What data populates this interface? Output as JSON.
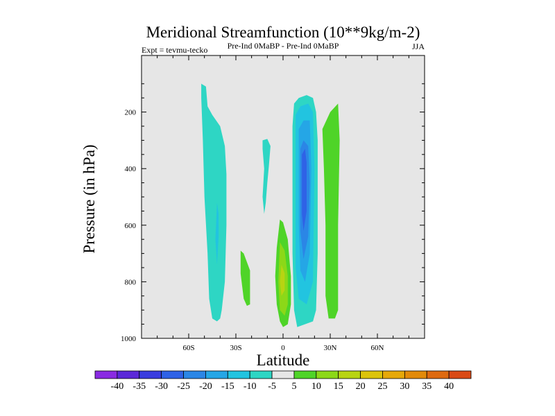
{
  "chart_data": {
    "type": "contour",
    "title": "Meridional Streamfunction (10**9kg/m-2)",
    "subtitle_left": "Expt = tevmu-tecko",
    "subtitle_center": "Pre-Ind 0MaBP - Pre-Ind 0MaBP",
    "season": "JJA",
    "xlabel": "Latitude",
    "ylabel": "Pressure (in hPa)",
    "xlim": [
      -90,
      90
    ],
    "ylim": [
      0,
      1000
    ],
    "y_inverted": true,
    "x_ticks": [
      {
        "value": -60,
        "label": "60S"
      },
      {
        "value": -30,
        "label": "30S"
      },
      {
        "value": 0,
        "label": "0"
      },
      {
        "value": 30,
        "label": "30N"
      },
      {
        "value": 60,
        "label": "60N"
      }
    ],
    "y_ticks": [
      {
        "value": 200,
        "label": "200"
      },
      {
        "value": 400,
        "label": "400"
      },
      {
        "value": 600,
        "label": "600"
      },
      {
        "value": 800,
        "label": "800"
      },
      {
        "value": 1000,
        "label": "1000"
      }
    ],
    "colorbar": {
      "labels": [
        "-40",
        "-35",
        "-30",
        "-25",
        "-20",
        "-15",
        "-10",
        "-5",
        "5",
        "10",
        "15",
        "20",
        "25",
        "30",
        "35",
        "40"
      ],
      "colors": [
        "#8a2be2",
        "#5b28d8",
        "#3a3ddf",
        "#2f62e6",
        "#2b86e6",
        "#25a6e6",
        "#22c4e0",
        "#2ed6c4",
        "#e6e6e6",
        "#4fd428",
        "#8cd818",
        "#b8d412",
        "#dcc40c",
        "#e6a80a",
        "#e28a0a",
        "#de6a10",
        "#da4a16"
      ]
    },
    "regions": [
      {
        "name": "sh-extratropical-cell",
        "level": "-5",
        "outline": [
          [
            -52,
            100
          ],
          [
            -49,
            110
          ],
          [
            -48,
            180
          ],
          [
            -45,
            210
          ],
          [
            -40,
            250
          ],
          [
            -37,
            320
          ],
          [
            -36,
            420
          ],
          [
            -36,
            600
          ],
          [
            -37,
            800
          ],
          [
            -39,
            900
          ],
          [
            -40,
            930
          ],
          [
            -42,
            940
          ],
          [
            -45,
            930
          ],
          [
            -47,
            860
          ],
          [
            -48,
            700
          ],
          [
            -50,
            500
          ],
          [
            -51,
            300
          ],
          [
            -52,
            150
          ]
        ]
      },
      {
        "name": "sh-extratropical-core",
        "level": "-10",
        "outline": [
          [
            -42,
            520
          ],
          [
            -43,
            650
          ],
          [
            -42,
            740
          ],
          [
            -41,
            640
          ],
          [
            -41,
            560
          ]
        ]
      },
      {
        "name": "sh-subtropical-positive",
        "level": "5",
        "outline": [
          [
            -27,
            690
          ],
          [
            -25,
            700
          ],
          [
            -21,
            760
          ],
          [
            -21,
            880
          ],
          [
            -23,
            885
          ],
          [
            -25,
            860
          ],
          [
            -27,
            770
          ]
        ]
      },
      {
        "name": "upper-negative-blob",
        "level": "-5",
        "outline": [
          [
            -13,
            300
          ],
          [
            -10,
            295
          ],
          [
            -8,
            320
          ],
          [
            -9,
            390
          ],
          [
            -10,
            450
          ],
          [
            -11,
            520
          ],
          [
            -12,
            560
          ],
          [
            -13,
            500
          ],
          [
            -12,
            400
          ],
          [
            -13,
            330
          ]
        ]
      },
      {
        "name": "equatorial-positive-cell",
        "level": "5",
        "outline": [
          [
            -2,
            580
          ],
          [
            0,
            590
          ],
          [
            3,
            650
          ],
          [
            5,
            780
          ],
          [
            5,
            880
          ],
          [
            3,
            950
          ],
          [
            0,
            960
          ],
          [
            -2,
            940
          ],
          [
            -4,
            880
          ],
          [
            -5,
            780
          ],
          [
            -4,
            680
          ]
        ]
      },
      {
        "name": "equatorial-positive-mid",
        "level": "10",
        "outline": [
          [
            -2,
            660
          ],
          [
            1,
            690
          ],
          [
            3,
            780
          ],
          [
            3,
            880
          ],
          [
            1,
            920
          ],
          [
            -2,
            900
          ],
          [
            -3,
            800
          ]
        ]
      },
      {
        "name": "equatorial-positive-core",
        "level": "15",
        "outline": [
          [
            -1,
            740
          ],
          [
            1,
            770
          ],
          [
            1,
            830
          ],
          [
            -1,
            850
          ],
          [
            -2,
            800
          ]
        ]
      },
      {
        "name": "nh-hadley-cell",
        "level": "-5",
        "outline": [
          [
            7,
            170
          ],
          [
            10,
            150
          ],
          [
            15,
            140
          ],
          [
            19,
            150
          ],
          [
            21,
            200
          ],
          [
            22,
            300
          ],
          [
            22,
            500
          ],
          [
            22,
            700
          ],
          [
            21,
            900
          ],
          [
            19,
            940
          ],
          [
            14,
            950
          ],
          [
            9,
            960
          ],
          [
            7,
            900
          ],
          [
            6,
            700
          ],
          [
            6,
            400
          ],
          [
            6,
            250
          ]
        ]
      },
      {
        "name": "nh-hadley-ring-2",
        "level": "-10",
        "outline": [
          [
            8,
            210
          ],
          [
            11,
            180
          ],
          [
            16,
            170
          ],
          [
            19,
            200
          ],
          [
            20,
            400
          ],
          [
            19,
            800
          ],
          [
            15,
            880
          ],
          [
            10,
            860
          ],
          [
            8,
            750
          ],
          [
            8,
            400
          ]
        ]
      },
      {
        "name": "nh-hadley-ring-3",
        "level": "-15",
        "outline": [
          [
            10,
            260
          ],
          [
            13,
            230
          ],
          [
            17,
            230
          ],
          [
            18,
            400
          ],
          [
            17,
            700
          ],
          [
            14,
            800
          ],
          [
            11,
            760
          ],
          [
            10,
            600
          ],
          [
            10,
            400
          ]
        ]
      },
      {
        "name": "nh-hadley-ring-4",
        "level": "-20",
        "outline": [
          [
            11,
            330
          ],
          [
            13,
            300
          ],
          [
            16,
            320
          ],
          [
            17,
            450
          ],
          [
            16,
            640
          ],
          [
            13,
            720
          ],
          [
            11,
            620
          ],
          [
            11,
            450
          ]
        ]
      },
      {
        "name": "nh-hadley-core",
        "level": "-25",
        "outline": [
          [
            12,
            350
          ],
          [
            14,
            330
          ],
          [
            15,
            380
          ],
          [
            15,
            550
          ],
          [
            13,
            620
          ],
          [
            12,
            560
          ],
          [
            12,
            420
          ]
        ]
      },
      {
        "name": "nh-positive-cell",
        "level": "5",
        "outline": [
          [
            25,
            260
          ],
          [
            30,
            200
          ],
          [
            35,
            170
          ],
          [
            36,
            300
          ],
          [
            35,
            600
          ],
          [
            35,
            900
          ],
          [
            33,
            930
          ],
          [
            29,
            930
          ],
          [
            27,
            850
          ],
          [
            27,
            600
          ],
          [
            26,
            400
          ]
        ]
      }
    ]
  }
}
